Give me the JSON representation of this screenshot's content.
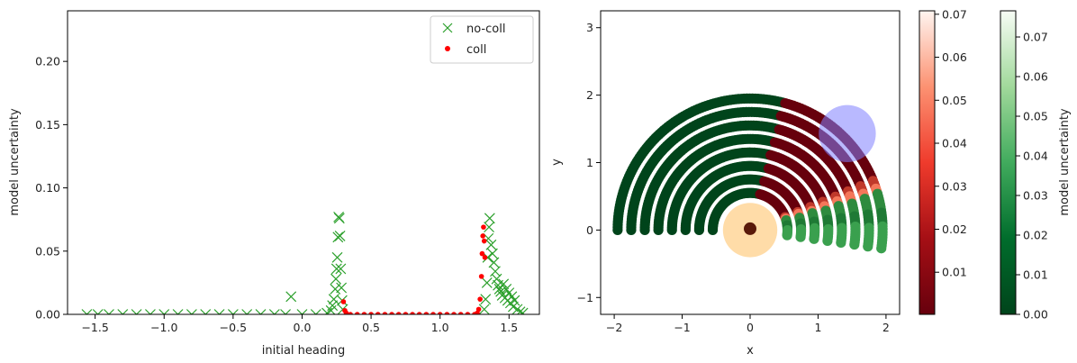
{
  "chart_data": [
    {
      "type": "scatter",
      "title": "",
      "xlabel": "initial heading",
      "ylabel": "model uncertainty",
      "xlim": [
        -1.7,
        1.72
      ],
      "ylim": [
        0,
        0.24
      ],
      "xticks": [
        "−1.5",
        "−1.0",
        "−0.5",
        "0.0",
        "0.5",
        "1.0",
        "1.5"
      ],
      "yticks": [
        "0.00",
        "0.05",
        "0.10",
        "0.15",
        "0.20"
      ],
      "legend": {
        "placement": "top-right",
        "entries": [
          "no-coll",
          "coll"
        ]
      },
      "colors": {
        "no-coll": "#2ca02c",
        "coll": "#ff0000"
      },
      "series": [
        {
          "name": "no-coll",
          "marker": "x",
          "points": [
            [
              -1.56,
              0.0
            ],
            [
              -1.48,
              0.0
            ],
            [
              -1.4,
              0.0
            ],
            [
              -1.3,
              0.0
            ],
            [
              -1.2,
              0.0
            ],
            [
              -1.1,
              0.0
            ],
            [
              -1.0,
              0.0
            ],
            [
              -0.9,
              0.0
            ],
            [
              -0.8,
              0.0
            ],
            [
              -0.7,
              0.0
            ],
            [
              -0.6,
              0.0
            ],
            [
              -0.5,
              0.0
            ],
            [
              -0.4,
              0.0
            ],
            [
              -0.3,
              0.0
            ],
            [
              -0.2,
              0.0
            ],
            [
              -0.12,
              0.0
            ],
            [
              -0.08,
              0.014
            ],
            [
              0.0,
              0.0
            ],
            [
              0.1,
              0.0
            ],
            [
              0.18,
              0.001
            ],
            [
              0.21,
              0.003
            ],
            [
              0.22,
              0.007
            ],
            [
              0.23,
              0.012
            ],
            [
              0.24,
              0.02
            ],
            [
              0.245,
              0.028
            ],
            [
              0.25,
              0.036
            ],
            [
              0.255,
              0.045
            ],
            [
              0.26,
              0.061
            ],
            [
              0.265,
              0.077
            ],
            [
              0.27,
              0.076
            ],
            [
              0.275,
              0.062
            ],
            [
              0.28,
              0.036
            ],
            [
              0.285,
              0.021
            ],
            [
              0.29,
              0.011
            ],
            [
              0.295,
              0.004
            ],
            [
              1.32,
              0.004
            ],
            [
              1.33,
              0.012
            ],
            [
              1.34,
              0.025
            ],
            [
              1.345,
              0.045
            ],
            [
              1.35,
              0.06
            ],
            [
              1.355,
              0.069
            ],
            [
              1.36,
              0.076
            ],
            [
              1.37,
              0.055
            ],
            [
              1.38,
              0.048
            ],
            [
              1.39,
              0.041
            ],
            [
              1.4,
              0.034
            ],
            [
              1.41,
              0.028
            ],
            [
              1.42,
              0.023
            ],
            [
              1.43,
              0.02
            ],
            [
              1.44,
              0.018
            ],
            [
              1.45,
              0.015
            ],
            [
              1.46,
              0.024
            ],
            [
              1.47,
              0.013
            ],
            [
              1.48,
              0.02
            ],
            [
              1.49,
              0.011
            ],
            [
              1.5,
              0.017
            ],
            [
              1.51,
              0.009
            ],
            [
              1.52,
              0.014
            ],
            [
              1.53,
              0.006
            ],
            [
              1.54,
              0.011
            ],
            [
              1.56,
              0.004
            ],
            [
              1.58,
              0.002
            ],
            [
              1.6,
              0.001
            ]
          ]
        },
        {
          "name": "coll",
          "marker": "o",
          "points": [
            [
              0.3,
              0.01
            ],
            [
              0.31,
              0.003
            ],
            [
              0.32,
              0.001
            ],
            [
              0.35,
              0.0
            ],
            [
              0.4,
              0.0
            ],
            [
              0.45,
              0.0
            ],
            [
              0.5,
              0.0
            ],
            [
              0.55,
              0.0
            ],
            [
              0.6,
              0.0
            ],
            [
              0.65,
              0.0
            ],
            [
              0.7,
              0.0
            ],
            [
              0.75,
              0.0
            ],
            [
              0.8,
              0.0
            ],
            [
              0.85,
              0.0
            ],
            [
              0.9,
              0.0
            ],
            [
              0.95,
              0.0
            ],
            [
              1.0,
              0.0
            ],
            [
              1.05,
              0.0
            ],
            [
              1.1,
              0.0
            ],
            [
              1.15,
              0.0
            ],
            [
              1.2,
              0.0
            ],
            [
              1.25,
              0.0
            ],
            [
              1.27,
              0.001
            ],
            [
              1.28,
              0.004
            ],
            [
              1.29,
              0.012
            ],
            [
              1.3,
              0.03
            ],
            [
              1.305,
              0.048
            ],
            [
              1.31,
              0.062
            ],
            [
              1.315,
              0.069
            ],
            [
              1.32,
              0.058
            ],
            [
              1.325,
              0.045
            ]
          ]
        }
      ]
    },
    {
      "type": "scatter",
      "title": "",
      "xlabel": "x",
      "ylabel": "y",
      "xlim": [
        -2.2,
        2.2
      ],
      "ylim": [
        -1.25,
        3.25
      ],
      "xticks": [
        "−2",
        "−1",
        "0",
        "1",
        "2"
      ],
      "yticks": [
        "−1",
        "0",
        "1",
        "2",
        "3"
      ],
      "aspect": "equal",
      "arcs": {
        "radii": [
          0.55,
          0.75,
          0.95,
          1.15,
          1.35,
          1.55,
          1.75,
          1.95
        ],
        "angle_range_deg": [
          -8,
          180
        ],
        "collision_angle_range_deg": [
          16,
          75
        ]
      },
      "obstacle": {
        "x": 1.43,
        "y": 1.43,
        "r": 0.42,
        "color": "#8080ff"
      },
      "robot": {
        "x": 0.0,
        "y": 0.0,
        "r": 0.4,
        "color": "#ffc060"
      },
      "colorbars": [
        {
          "name": "collision-uncertainty",
          "cmap": "Reds_r",
          "ticks": [
            "0.07",
            "0.06",
            "0.05",
            "0.04",
            "0.03",
            "0.02",
            "0.01"
          ],
          "label": ""
        },
        {
          "name": "no-collision-uncertainty",
          "cmap": "Greens_r",
          "ticks": [
            "0.07",
            "0.06",
            "0.05",
            "0.04",
            "0.03",
            "0.02",
            "0.01",
            "0.00"
          ],
          "label": "model uncertainty"
        }
      ]
    }
  ]
}
